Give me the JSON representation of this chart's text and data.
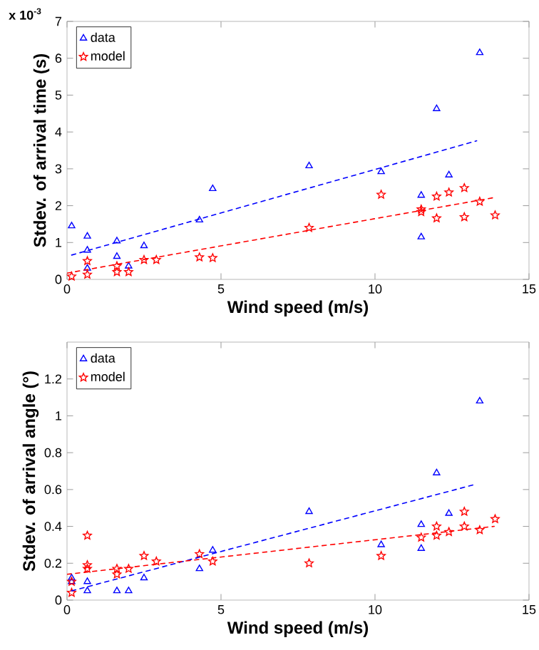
{
  "chart_data": [
    {
      "type": "scatter",
      "xlabel": "Wind speed (m/s)",
      "ylabel": "Stdev. of arrival time (s)",
      "annotations": [
        "x 10$^{-3}$"
      ],
      "xlim": [
        0,
        15
      ],
      "xticks": [
        0,
        5,
        10,
        15
      ],
      "ylim": [
        0,
        7
      ],
      "yticks": [
        0,
        1,
        2,
        3,
        4,
        5,
        6,
        7
      ],
      "legend": "top left",
      "series": [
        {
          "name": "data",
          "color": "#0000ff",
          "marker": "triangle",
          "x": [
            0.15,
            0.66,
            0.66,
            0.66,
            1.62,
            1.62,
            2.0,
            2.5,
            4.3,
            4.73,
            7.86,
            10.2,
            11.5,
            11.5,
            12.0,
            12.4,
            13.4
          ],
          "values": [
            1.45,
            1.17,
            0.79,
            0.3,
            1.04,
            0.62,
            0.36,
            0.91,
            1.61,
            2.46,
            3.08,
            2.92,
            2.28,
            1.15,
            4.63,
            2.83,
            6.15
          ]
        },
        {
          "name": "model",
          "color": "#ff0000",
          "marker": "star",
          "x": [
            0.15,
            0.66,
            0.66,
            1.62,
            1.62,
            2.0,
            2.5,
            2.9,
            4.3,
            4.73,
            7.86,
            10.2,
            11.5,
            11.5,
            12.0,
            12.0,
            12.4,
            12.9,
            12.9,
            13.4,
            13.9
          ],
          "values": [
            0.08,
            0.13,
            0.5,
            0.36,
            0.2,
            0.2,
            0.53,
            0.53,
            0.6,
            0.58,
            1.4,
            2.3,
            1.9,
            1.83,
            2.25,
            1.66,
            2.36,
            2.48,
            1.69,
            2.11,
            1.74
          ]
        },
        {
          "type": "line",
          "color": "#0000ff",
          "line_style": "dashed",
          "marker": "none",
          "x": [
            0.15,
            13.3
          ],
          "values": [
            0.66,
            3.76
          ]
        },
        {
          "type": "line",
          "color": "#ff0000",
          "line_style": "dashed",
          "marker": "none",
          "x": [
            0,
            13.87
          ],
          "values": [
            0.17,
            2.22
          ]
        }
      ]
    },
    {
      "type": "scatter",
      "xlabel": "Wind speed (m/s)",
      "ylabel": "Stdev. of arrival angle (°)",
      "xlim": [
        0,
        15
      ],
      "xticks": [
        0,
        5,
        10,
        15
      ],
      "ylim": [
        0,
        1.4
      ],
      "yticks": [
        0,
        0.2,
        0.4,
        0.6,
        0.8,
        1,
        1.2
      ],
      "legend": "top left",
      "series": [
        {
          "name": "data",
          "color": "#0000ff",
          "marker": "triangle",
          "x": [
            0.15,
            0.15,
            0.66,
            0.66,
            1.62,
            2.0,
            2.5,
            4.3,
            4.73,
            7.86,
            10.2,
            11.5,
            11.5,
            12.0,
            12.4,
            13.4
          ],
          "values": [
            0.12,
            0.1,
            0.1,
            0.05,
            0.05,
            0.05,
            0.12,
            0.17,
            0.27,
            0.48,
            0.3,
            0.28,
            0.41,
            0.69,
            0.47,
            1.08
          ]
        },
        {
          "name": "model",
          "color": "#ff0000",
          "marker": "star",
          "x": [
            0.15,
            0.15,
            0.66,
            0.66,
            0.66,
            1.62,
            1.62,
            2.0,
            2.5,
            2.9,
            4.3,
            4.73,
            7.86,
            10.2,
            11.5,
            12.0,
            12.0,
            12.4,
            12.9,
            12.9,
            13.4,
            13.9
          ],
          "values": [
            0.1,
            0.04,
            0.35,
            0.19,
            0.17,
            0.17,
            0.14,
            0.17,
            0.24,
            0.21,
            0.25,
            0.21,
            0.2,
            0.24,
            0.34,
            0.4,
            0.35,
            0.37,
            0.48,
            0.4,
            0.38,
            0.44
          ]
        },
        {
          "type": "line",
          "color": "#0000ff",
          "line_style": "dashed",
          "marker": "none",
          "x": [
            0.15,
            13.3
          ],
          "values": [
            0.05,
            0.63
          ]
        },
        {
          "type": "line",
          "color": "#ff0000",
          "line_style": "dashed",
          "marker": "none",
          "x": [
            0,
            13.87
          ],
          "values": [
            0.14,
            0.4
          ]
        }
      ]
    }
  ]
}
